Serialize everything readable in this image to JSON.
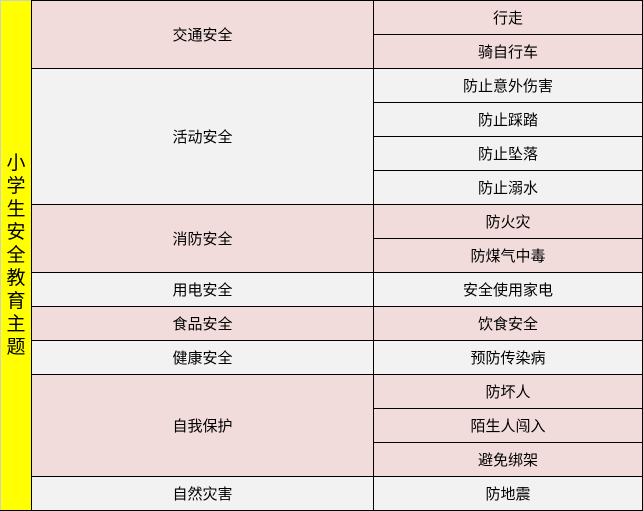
{
  "title": "小学生安全教育主题",
  "colors": {
    "title_bg": "#ffff00",
    "pink": "#f2dcdb",
    "gray": "#f2f2f2"
  },
  "groups": [
    {
      "category": "交通安全",
      "items": [
        "行走",
        "骑自行车"
      ]
    },
    {
      "category": "活动安全",
      "items": [
        "防止意外伤害",
        "防止踩踏",
        "防止坠落",
        "防止溺水"
      ]
    },
    {
      "category": "消防安全",
      "items": [
        "防火灾",
        "防煤气中毒"
      ]
    },
    {
      "category": "用电安全",
      "items": [
        "安全使用家电"
      ]
    },
    {
      "category": "食品安全",
      "items": [
        "饮食安全"
      ]
    },
    {
      "category": "健康安全",
      "items": [
        "预防传染病"
      ]
    },
    {
      "category": "自我保护",
      "items": [
        "防坏人",
        "陌生人闯入",
        "避免绑架"
      ]
    },
    {
      "category": "自然灾害",
      "items": [
        "防地震"
      ]
    }
  ]
}
